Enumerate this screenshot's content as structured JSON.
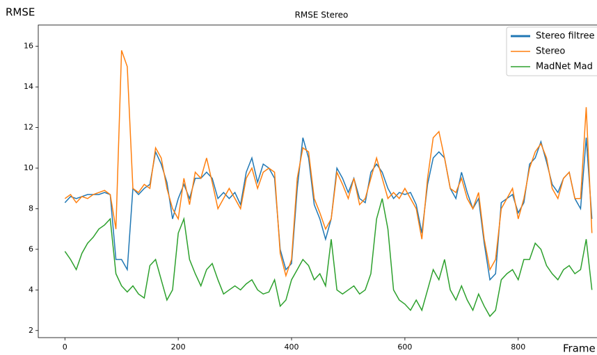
{
  "chart_data": {
    "type": "line",
    "title": "RMSE Stereo",
    "y_label": "RMSE",
    "x_label": "Frame",
    "x": [
      0,
      10,
      20,
      30,
      40,
      50,
      60,
      70,
      80,
      90,
      100,
      110,
      120,
      130,
      140,
      150,
      160,
      170,
      180,
      190,
      200,
      210,
      220,
      230,
      240,
      250,
      260,
      270,
      280,
      290,
      300,
      310,
      320,
      330,
      340,
      350,
      360,
      370,
      380,
      390,
      400,
      410,
      420,
      430,
      440,
      450,
      460,
      470,
      480,
      490,
      500,
      510,
      520,
      530,
      540,
      550,
      560,
      570,
      580,
      590,
      600,
      610,
      620,
      630,
      640,
      650,
      660,
      670,
      680,
      690,
      700,
      710,
      720,
      730,
      740,
      750,
      760,
      770,
      780,
      790,
      800,
      810,
      820,
      830,
      840,
      850,
      860,
      870,
      880,
      890,
      900,
      910,
      920,
      930
    ],
    "series": [
      {
        "name": "Stereo filtree",
        "color": "#1f77b4",
        "values": [
          8.3,
          8.6,
          8.5,
          8.6,
          8.7,
          8.7,
          8.7,
          8.8,
          8.7,
          5.5,
          5.5,
          5.0,
          9.0,
          8.7,
          9.0,
          9.2,
          10.8,
          10.2,
          9.3,
          7.5,
          8.5,
          9.2,
          8.5,
          9.5,
          9.5,
          9.8,
          9.5,
          8.5,
          8.8,
          8.5,
          8.8,
          8.2,
          9.8,
          10.5,
          9.3,
          10.2,
          10.0,
          9.5,
          6.0,
          5.0,
          5.3,
          9.0,
          11.5,
          10.5,
          8.2,
          7.5,
          6.5,
          7.5,
          10.0,
          9.5,
          8.8,
          9.5,
          8.5,
          8.3,
          9.8,
          10.2,
          9.8,
          9.0,
          8.5,
          8.8,
          8.7,
          8.8,
          8.2,
          6.8,
          9.2,
          10.5,
          10.8,
          10.5,
          9.0,
          8.5,
          9.8,
          8.8,
          8.0,
          8.5,
          6.3,
          4.5,
          4.8,
          8.3,
          8.5,
          8.7,
          7.8,
          8.3,
          10.2,
          10.5,
          11.3,
          10.3,
          9.2,
          8.8,
          9.5,
          9.8,
          8.5,
          8.0,
          11.5,
          7.5
        ]
      },
      {
        "name": "Stereo",
        "color": "#ff7f0e",
        "values": [
          8.5,
          8.7,
          8.3,
          8.6,
          8.5,
          8.7,
          8.8,
          8.9,
          8.7,
          7.0,
          15.8,
          15.0,
          9.0,
          8.8,
          9.2,
          9.0,
          11.0,
          10.5,
          9.0,
          8.0,
          7.5,
          9.5,
          8.2,
          9.8,
          9.5,
          10.5,
          9.3,
          8.0,
          8.5,
          9.0,
          8.5,
          8.0,
          9.5,
          10.0,
          9.0,
          9.8,
          10.0,
          9.8,
          5.8,
          4.7,
          5.5,
          9.5,
          11.0,
          10.8,
          8.5,
          7.8,
          7.0,
          7.5,
          9.8,
          9.2,
          8.5,
          9.5,
          8.2,
          8.5,
          9.5,
          10.5,
          9.5,
          8.5,
          8.8,
          8.5,
          9.0,
          8.5,
          8.0,
          6.5,
          9.5,
          11.5,
          11.8,
          10.5,
          9.0,
          8.8,
          9.5,
          8.5,
          8.0,
          8.8,
          6.5,
          5.0,
          5.5,
          8.0,
          8.5,
          9.0,
          7.5,
          8.5,
          10.0,
          10.8,
          11.2,
          10.5,
          9.0,
          8.5,
          9.5,
          9.8,
          8.5,
          8.5,
          13.0,
          6.8
        ]
      },
      {
        "name": "MadNet Mad",
        "color": "#2ca02c",
        "values": [
          5.9,
          5.5,
          5.0,
          5.8,
          6.3,
          6.6,
          7.0,
          7.2,
          7.5,
          4.8,
          4.2,
          3.9,
          4.2,
          3.8,
          3.6,
          5.2,
          5.5,
          4.5,
          3.5,
          4.0,
          6.8,
          7.5,
          5.5,
          4.8,
          4.2,
          5.0,
          5.3,
          4.5,
          3.8,
          4.0,
          4.2,
          4.0,
          4.3,
          4.5,
          4.0,
          3.8,
          3.9,
          4.5,
          3.2,
          3.5,
          4.5,
          5.0,
          5.5,
          5.2,
          4.5,
          4.8,
          4.2,
          6.5,
          4.0,
          3.8,
          4.0,
          4.2,
          3.8,
          4.0,
          4.8,
          7.5,
          8.5,
          7.0,
          4.0,
          3.5,
          3.3,
          3.0,
          3.5,
          3.0,
          4.0,
          5.0,
          4.5,
          5.5,
          4.0,
          3.5,
          4.2,
          3.5,
          3.0,
          3.8,
          3.2,
          2.7,
          3.0,
          4.5,
          4.8,
          5.0,
          4.5,
          5.5,
          5.5,
          6.3,
          6.0,
          5.2,
          4.8,
          4.5,
          5.0,
          5.2,
          4.8,
          5.0,
          6.5,
          4.0
        ]
      }
    ],
    "xlim": [
      -47,
      982
    ],
    "ylim": [
      1.65,
      17.05
    ],
    "xticks": [
      0,
      200,
      400,
      600,
      800
    ],
    "yticks": [
      2,
      4,
      6,
      8,
      10,
      12,
      14,
      16
    ],
    "legend": "upper right"
  }
}
